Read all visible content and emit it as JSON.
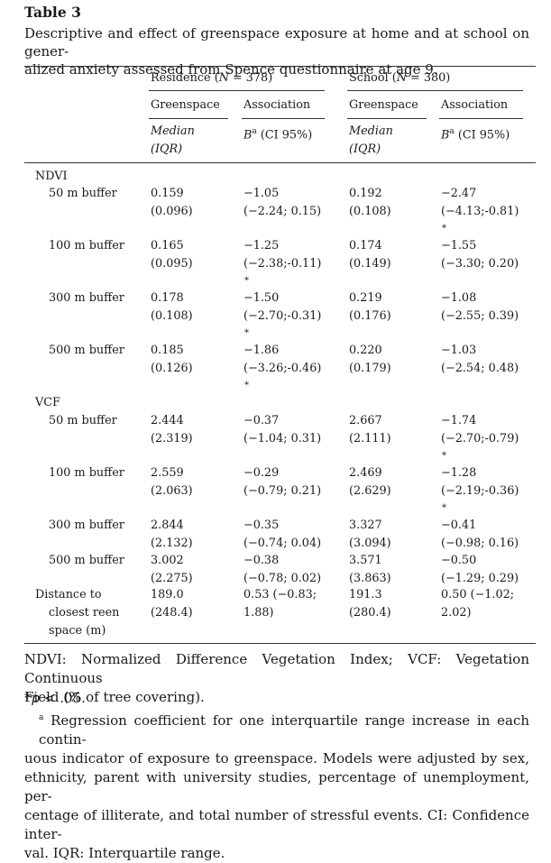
{
  "table": {
    "label": "Table 3",
    "caption": [
      "Descriptive and effect of greenspace exposure at home and at school on gener-",
      "alized anxiety assessed from Spence questionnaire at age 9."
    ],
    "groups": [
      {
        "name": "Residence",
        "n_label": "N",
        "n_value": "378"
      },
      {
        "name": "School",
        "n_label": "N",
        "n_value": "380"
      }
    ],
    "subheaders": {
      "greenspace": "Greenspace",
      "association": "Association",
      "median": "Median",
      "iqr": "(IQR)",
      "b": "B",
      "b_sup": "a",
      "ci": "(CI 95%)"
    },
    "sections": [
      {
        "name": "NDVI",
        "rows": [
          {
            "label": "50 m buffer",
            "res_median": "0.159",
            "res_iqr": "(0.096)",
            "res_b": "−1.05",
            "res_ci": "(−2.24; 0.15)",
            "res_sig": "",
            "sch_median": "0.192",
            "sch_iqr": "(0.108)",
            "sch_b": "−2.47",
            "sch_ci": "(−4.13;-0.81)",
            "sch_sig": "*"
          },
          {
            "label": "100 m buffer",
            "res_median": "0.165",
            "res_iqr": "(0.095)",
            "res_b": "−1.25",
            "res_ci": "(−2.38;-0.11)",
            "res_sig": "*",
            "sch_median": "0.174",
            "sch_iqr": "(0.149)",
            "sch_b": "−1.55",
            "sch_ci": "(−3.30; 0.20)",
            "sch_sig": ""
          },
          {
            "label": "300 m buffer",
            "res_median": "0.178",
            "res_iqr": "(0.108)",
            "res_b": "−1.50",
            "res_ci": "(−2.70;-0.31)",
            "res_sig": "*",
            "sch_median": "0.219",
            "sch_iqr": "(0.176)",
            "sch_b": "−1.08",
            "sch_ci": "(−2.55; 0.39)",
            "sch_sig": ""
          },
          {
            "label": "500 m buffer",
            "res_median": "0.185",
            "res_iqr": "(0.126)",
            "res_b": "−1.86",
            "res_ci": "(−3.26;-0.46)",
            "res_sig": "*",
            "sch_median": "0.220",
            "sch_iqr": "(0.179)",
            "sch_b": "−1.03",
            "sch_ci": "(−2.54; 0.48)",
            "sch_sig": ""
          }
        ]
      },
      {
        "name": "VCF",
        "rows": [
          {
            "label": "50 m buffer",
            "res_median": "2.444",
            "res_iqr": "(2.319)",
            "res_b": "−0.37",
            "res_ci": "(−1.04; 0.31)",
            "res_sig": "",
            "sch_median": "2.667",
            "sch_iqr": "(2.111)",
            "sch_b": "−1.74",
            "sch_ci": "(−2.70;-0.79)",
            "sch_sig": "*"
          },
          {
            "label": "100 m buffer",
            "res_median": "2.559",
            "res_iqr": "(2.063)",
            "res_b": "−0.29",
            "res_ci": "(−0.79; 0.21)",
            "res_sig": "",
            "sch_median": "2.469",
            "sch_iqr": "(2.629)",
            "sch_b": "−1.28",
            "sch_ci": "(−2.19;-0.36)",
            "sch_sig": "*"
          },
          {
            "label": "300 m buffer",
            "res_median": "2.844",
            "res_iqr": "(2.132)",
            "res_b": "−0.35",
            "res_ci": "(−0.74; 0.04)",
            "res_sig": "",
            "sch_median": "3.327",
            "sch_iqr": "(3.094)",
            "sch_b": "−0.41",
            "sch_ci": "(−0.98; 0.16)",
            "sch_sig": ""
          },
          {
            "label": "500 m buffer",
            "res_median": "3.002",
            "res_iqr": "(2.275)",
            "res_b": "−0.38",
            "res_ci": "(−0.78; 0.02)",
            "res_sig": "",
            "sch_median": "3.571",
            "sch_iqr": "(3.863)",
            "sch_b": "−0.50",
            "sch_ci": "(−1.29; 0.29)",
            "sch_sig": ""
          }
        ]
      }
    ],
    "distance_row": {
      "label": [
        "Distance to",
        "closest reen",
        "space (m)"
      ],
      "res_median": "189.0",
      "res_iqr": "(248.4)",
      "res_assoc": [
        "0.53 (−0.83;",
        "1.88)"
      ],
      "sch_median": "191.3",
      "sch_iqr": "(280.4)",
      "sch_assoc": [
        "0.50 (−1.02;",
        "2.02)"
      ]
    }
  },
  "footnotes": {
    "abbrev": [
      "NDVI: Normalized Difference Vegetation Index; VCF: Vegetation Continuous",
      "Field (% of tree covering)."
    ],
    "p_symbol": "*p",
    "p_text": " < .05.",
    "a_marker": "a",
    "a_lines": [
      " Regression coefficient for one interquartile range increase in each contin-",
      "uous indicator of exposure to greenspace. Models were adjusted by sex,",
      "ethnicity, parent with university studies, percentage of unemployment, per-",
      "centage of illiterate, and total number of stressful events. CI: Confidence inter-",
      "val. IQR: Interquartile range."
    ]
  }
}
